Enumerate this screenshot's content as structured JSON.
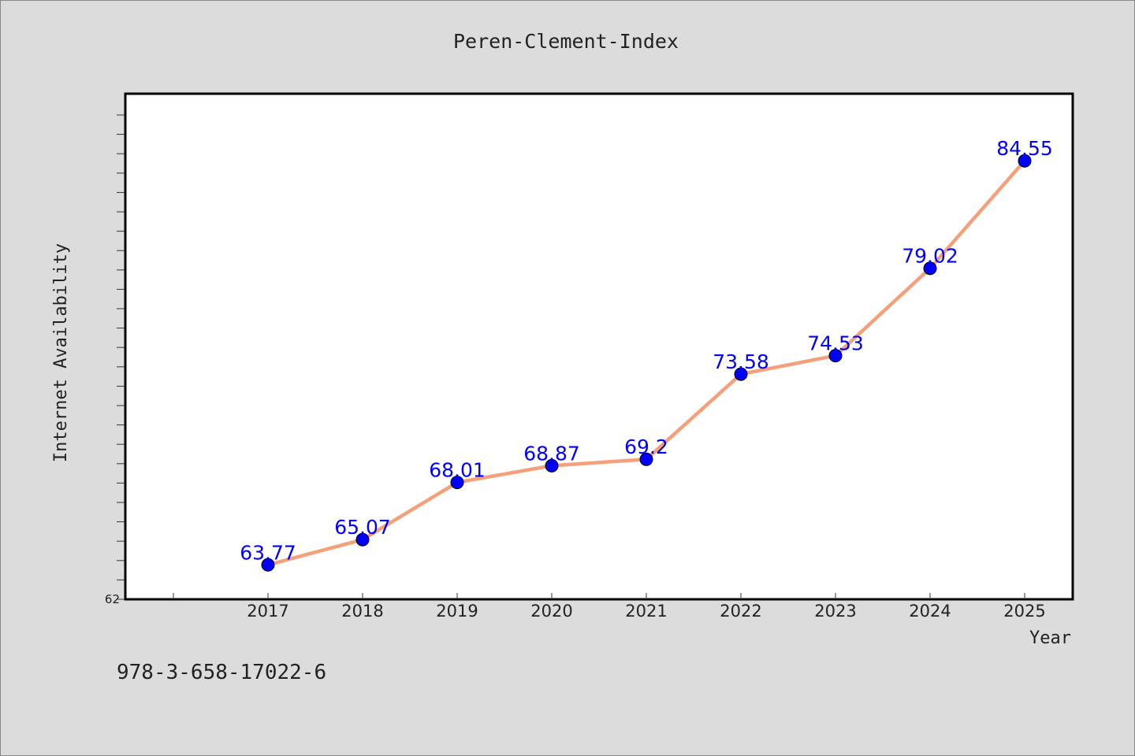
{
  "chart_data": {
    "type": "line",
    "title": "Peren-Clement-Index",
    "xlabel": "Year",
    "ylabel": "Internet Availability",
    "categories": [
      "2017",
      "2018",
      "2019",
      "2020",
      "2021",
      "2022",
      "2023",
      "2024",
      "2025"
    ],
    "series": [
      {
        "values": [
          63.77,
          65.07,
          68.01,
          68.87,
          69.2,
          73.58,
          74.53,
          79.02,
          84.55
        ],
        "data_labels": [
          "63.77",
          "65.07",
          "68.01",
          "68.87",
          "69.2",
          "73.58",
          "74.53",
          "79.02",
          "84.55"
        ],
        "line_color": "#f4a07a",
        "marker_color": "#0000ff"
      }
    ],
    "ylim": [
      62,
      88
    ],
    "yticks_labeled": [
      "62"
    ],
    "grid": false,
    "legend": "none",
    "plot_background": "#ffffff",
    "page_background": "#dcdcdc"
  },
  "footer": {
    "isbn": "978-3-658-17022-6"
  }
}
